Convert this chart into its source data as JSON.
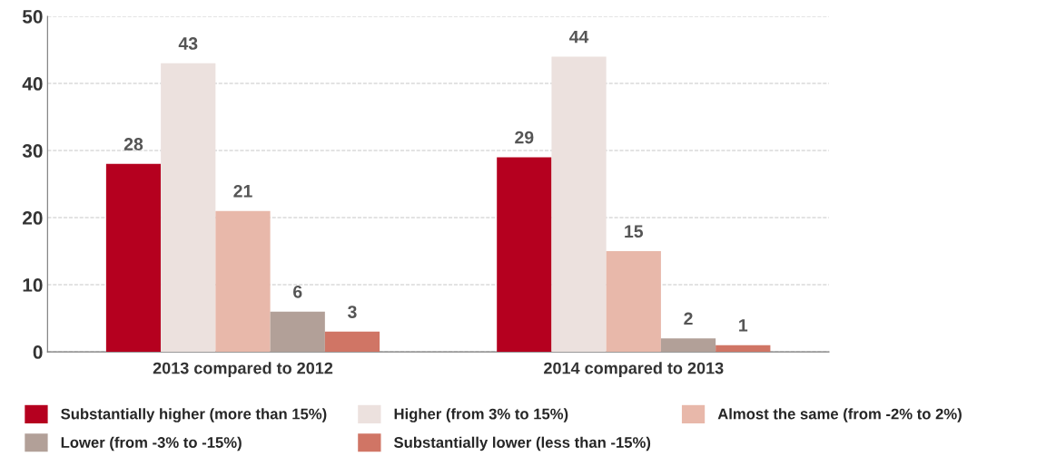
{
  "chart_data": {
    "type": "bar",
    "categories": [
      "2013 compared to 2012",
      "2014 compared to 2013"
    ],
    "series": [
      {
        "name": "Substantially higher (more than 15%)",
        "color": "#b5001f",
        "values": [
          28,
          29
        ]
      },
      {
        "name": "Higher (from 3% to 15%)",
        "color": "#ece1de",
        "values": [
          43,
          44
        ]
      },
      {
        "name": "Almost the same (from -2% to 2%)",
        "color": "#e8b8aa",
        "values": [
          21,
          15
        ]
      },
      {
        "name": "Lower (from -3% to -15%)",
        "color": "#b2a098",
        "values": [
          6,
          2
        ]
      },
      {
        "name": "Substantially lower (less than -15%)",
        "color": "#d07565",
        "values": [
          3,
          1
        ]
      }
    ],
    "ylim": [
      0,
      50
    ],
    "yticks": [
      0,
      10,
      20,
      30,
      40,
      50
    ],
    "grid": "y",
    "legend": "bottom",
    "data_labels": true
  }
}
